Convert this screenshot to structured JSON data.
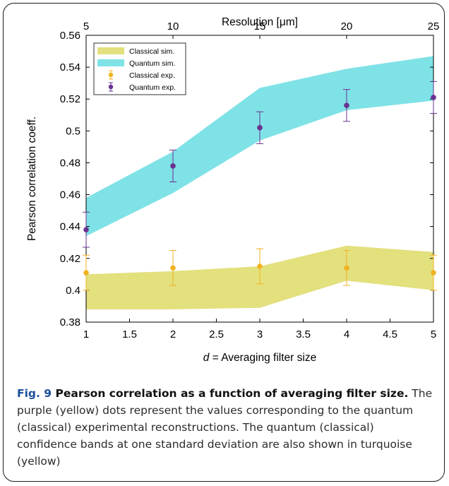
{
  "chart_data": {
    "type": "line",
    "title": "",
    "xlabel_prefix": "d",
    "xlabel_rest": " = Averaging filter size",
    "ylabel": "Pearson correlation coeff.",
    "top_xlabel": "Resolution [μm]",
    "xlim": [
      1,
      5
    ],
    "ylim": [
      0.38,
      0.56
    ],
    "x_ticks": [
      1,
      1.5,
      2,
      2.5,
      3,
      3.5,
      4,
      4.5,
      5
    ],
    "x_tick_labels": [
      "1",
      "1.5",
      "2",
      "2.5",
      "3",
      "3.5",
      "4",
      "4.5",
      "5"
    ],
    "y_ticks": [
      0.38,
      0.4,
      0.42,
      0.44,
      0.46,
      0.48,
      0.5,
      0.52,
      0.54,
      0.56
    ],
    "y_tick_labels": [
      "0.38",
      "0.4",
      "0.42",
      "0.44",
      "0.46",
      "0.48",
      "0.5",
      "0.52",
      "0.54",
      "0.56"
    ],
    "top_ticks": [
      1,
      2,
      3,
      4,
      5
    ],
    "top_tick_labels": [
      "5",
      "10",
      "15",
      "20",
      "25"
    ],
    "legend_position": "top-left",
    "bands": [
      {
        "name": "Classical sim.",
        "color": "#e3e07e",
        "x": [
          1,
          2,
          3,
          4,
          5
        ],
        "lower": [
          0.388,
          0.388,
          0.389,
          0.406,
          0.4
        ],
        "upper": [
          0.41,
          0.412,
          0.415,
          0.428,
          0.424
        ]
      },
      {
        "name": "Quantum sim.",
        "color": "#7fe2e6",
        "x": [
          1,
          2,
          3,
          4,
          5
        ],
        "lower": [
          0.434,
          0.461,
          0.494,
          0.513,
          0.519
        ],
        "upper": [
          0.458,
          0.487,
          0.527,
          0.539,
          0.547
        ]
      }
    ],
    "series": [
      {
        "name": "Classical exp.",
        "color": "#f0b323",
        "x": [
          1,
          2,
          3,
          4,
          5
        ],
        "y": [
          0.411,
          0.414,
          0.415,
          0.414,
          0.411
        ],
        "err": [
          0.011,
          0.011,
          0.011,
          0.011,
          0.011
        ]
      },
      {
        "name": "Quantum exp.",
        "color": "#6a3391",
        "x": [
          1,
          2,
          3,
          4,
          5
        ],
        "y": [
          0.438,
          0.478,
          0.502,
          0.516,
          0.521
        ],
        "err": [
          0.011,
          0.01,
          0.01,
          0.01,
          0.01
        ]
      }
    ]
  },
  "caption": {
    "label": "Fig. 9",
    "title": "Pearson correlation as a function of averaging filter size.",
    "body": "The purple (yellow) dots represent the values corresponding to the quantum (classical) experimental reconstructions. The quantum (classical) confidence bands at one standard deviation are also shown in turquoise (yellow)"
  }
}
